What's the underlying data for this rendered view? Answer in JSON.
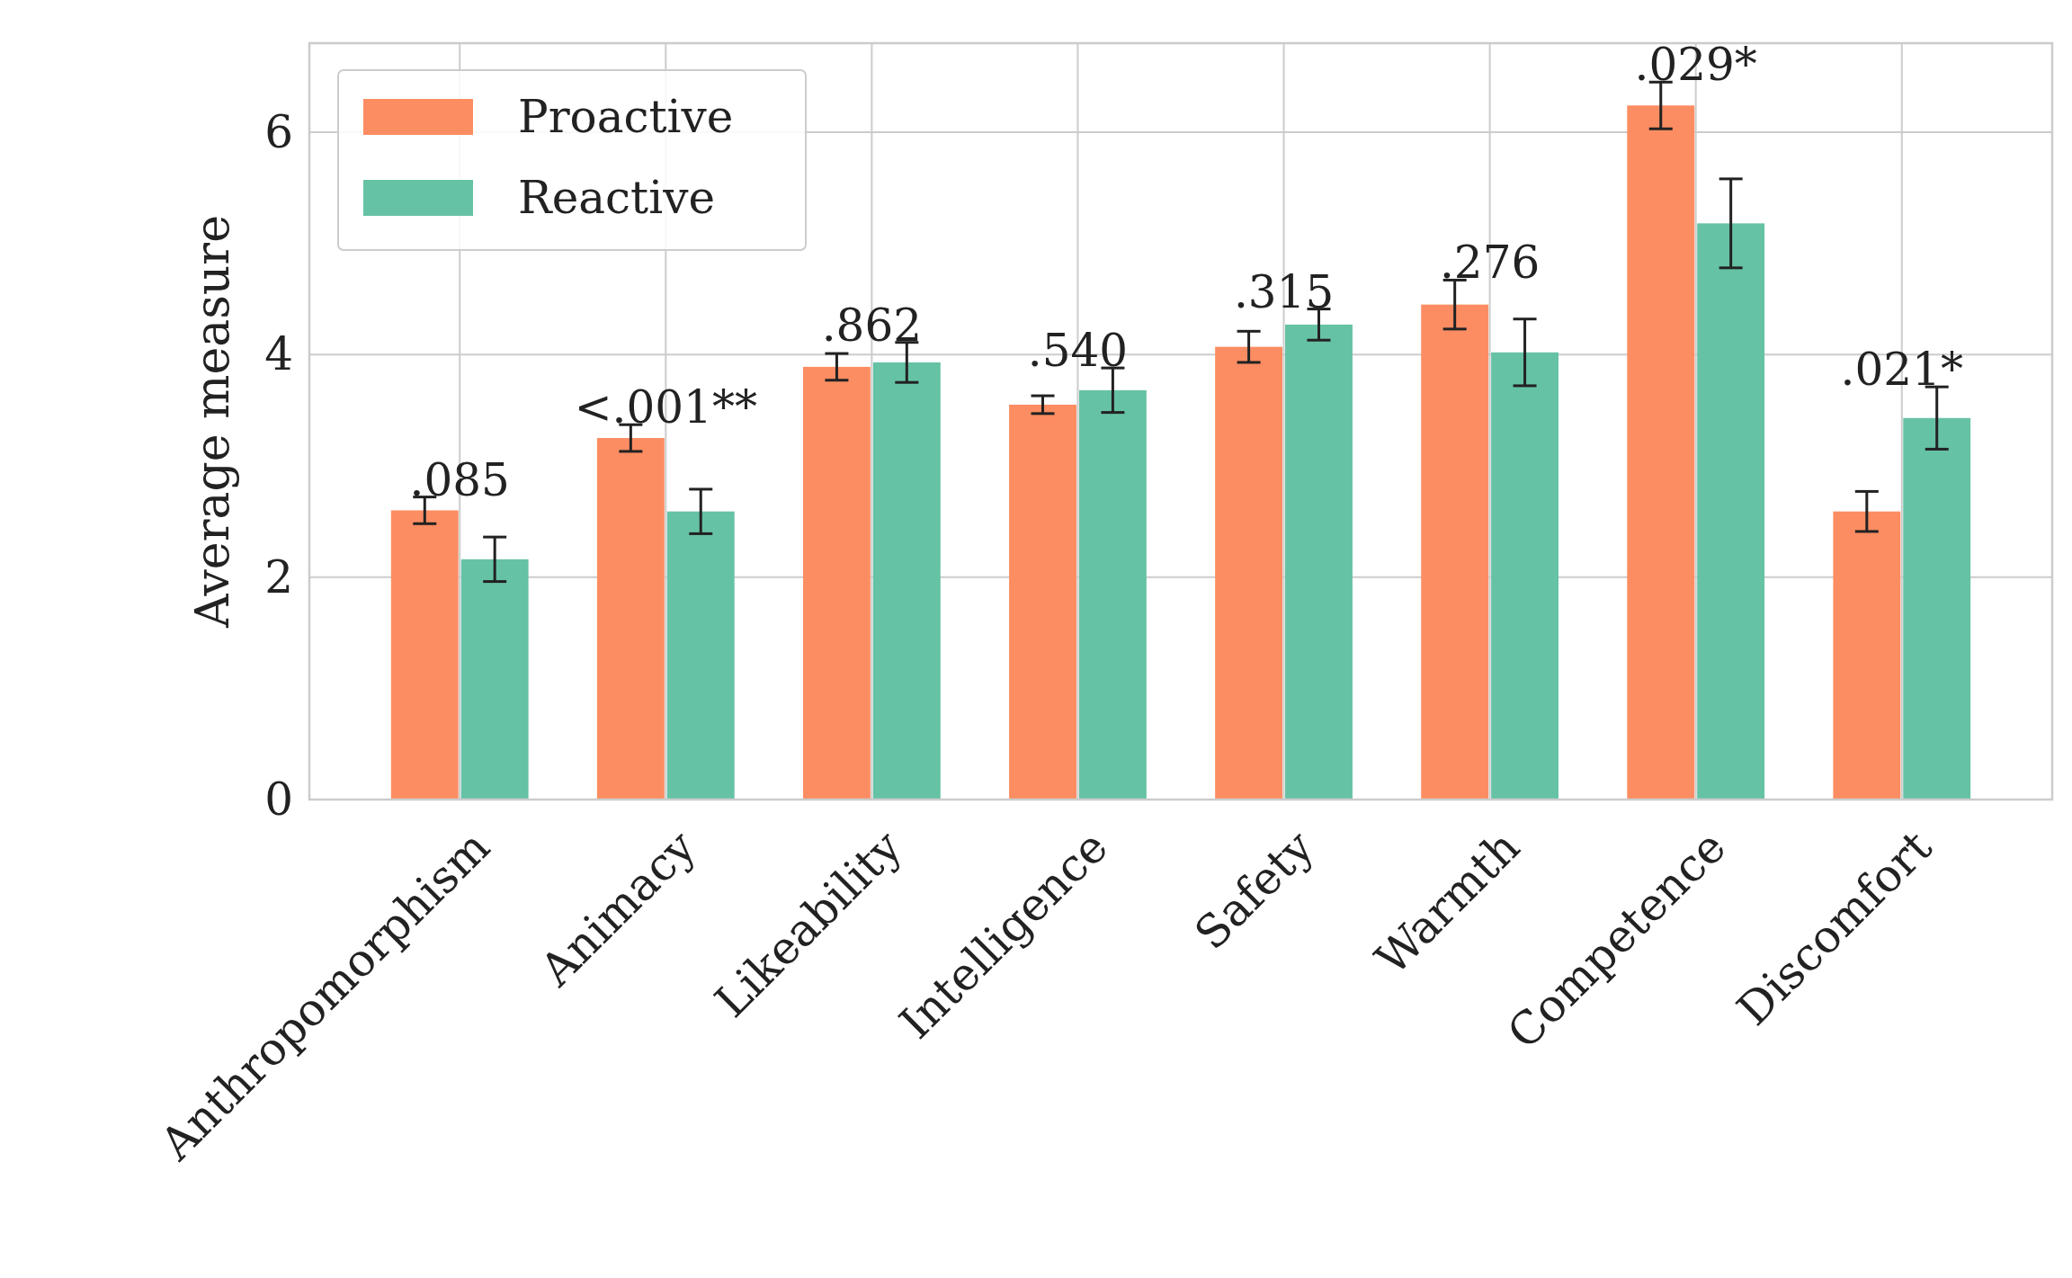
{
  "chart_data": {
    "type": "bar",
    "ylabel": "Average measure",
    "categories": [
      "Anthropomorphism",
      "Animacy",
      "Likeability",
      "Intelligence",
      "Safety",
      "Warmth",
      "Competence",
      "Discomfort"
    ],
    "series": [
      {
        "name": "Proactive",
        "color": "#fc8d62",
        "values": [
          2.6,
          3.25,
          3.89,
          3.55,
          4.07,
          4.45,
          6.24,
          2.59
        ],
        "errors": [
          0.12,
          0.12,
          0.12,
          0.08,
          0.14,
          0.22,
          0.21,
          0.18
        ]
      },
      {
        "name": "Reactive",
        "color": "#66c2a5",
        "values": [
          2.16,
          2.59,
          3.93,
          3.68,
          4.27,
          4.02,
          5.18,
          3.43
        ],
        "errors": [
          0.2,
          0.2,
          0.18,
          0.2,
          0.14,
          0.3,
          0.4,
          0.28
        ]
      }
    ],
    "ylim": [
      0,
      6.8
    ],
    "yticks": [
      0,
      2,
      4,
      6
    ],
    "grid": true,
    "legend": "top left",
    "annotations": [
      ".085",
      "<.001**",
      ".862",
      ".540",
      ".315",
      ".276",
      ".029*",
      ".021*"
    ]
  }
}
